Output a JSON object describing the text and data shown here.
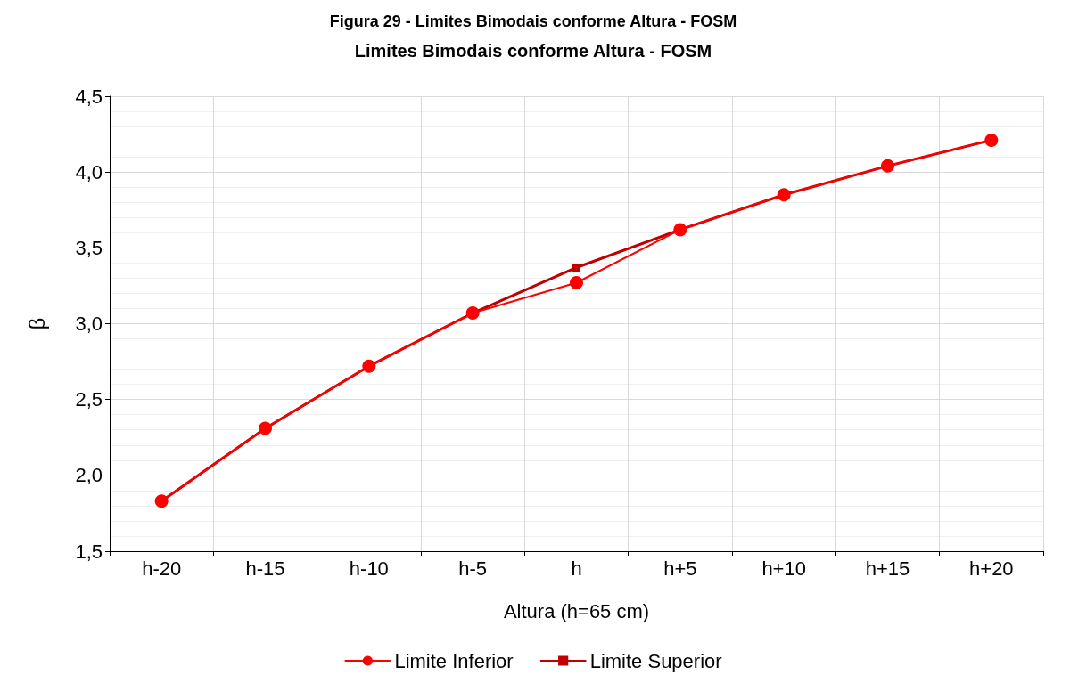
{
  "chart_data": {
    "type": "line",
    "title": "Figura 29 - Limites Bimodais conforme Altura - FOSM",
    "subtitle": "Limites Bimodais conforme Altura - FOSM",
    "xlabel": "Altura (h=65 cm)",
    "ylabel": "β",
    "categories": [
      "h-20",
      "h-15",
      "h-10",
      "h-5",
      "h",
      "h+5",
      "h+10",
      "h+15",
      "h+20"
    ],
    "series": [
      {
        "name": "Limite Inferior",
        "color": "#ff0000",
        "marker": "circle",
        "values": [
          1.83,
          2.31,
          2.72,
          3.07,
          3.27,
          3.62,
          3.85,
          4.04,
          4.21
        ]
      },
      {
        "name": "Limite Superior",
        "color": "#c00000",
        "marker": "square",
        "values": [
          1.83,
          2.31,
          2.72,
          3.07,
          3.37,
          3.62,
          3.85,
          4.04,
          4.21
        ]
      }
    ],
    "ylim": [
      1.5,
      4.5
    ],
    "yticks": [
      {
        "value": 1.5,
        "label": "1,5"
      },
      {
        "value": 2.0,
        "label": "2,0"
      },
      {
        "value": 2.5,
        "label": "2,5"
      },
      {
        "value": 3.0,
        "label": "3,0"
      },
      {
        "value": 3.5,
        "label": "3,5"
      },
      {
        "value": 4.0,
        "label": "4,0"
      },
      {
        "value": 4.5,
        "label": "4,5"
      }
    ],
    "grid": true,
    "legend": "bottom",
    "line_style": "solid"
  }
}
